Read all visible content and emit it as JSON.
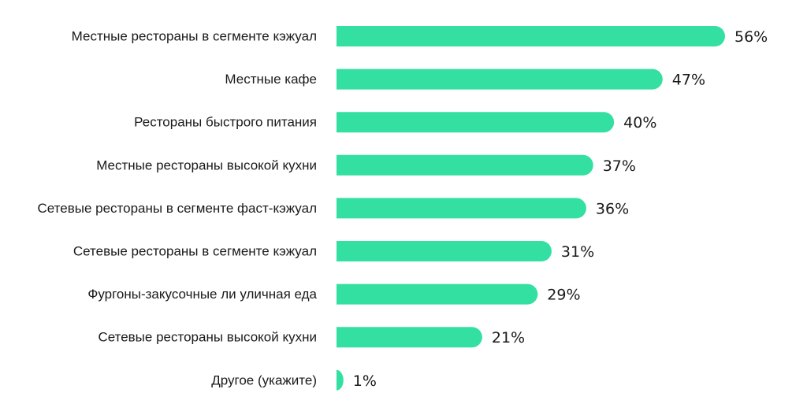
{
  "chart_data": {
    "type": "bar",
    "orientation": "horizontal",
    "categories": [
      "Местные рестораны в сегменте кэжуал",
      "Местные кафе",
      "Рестораны быстрого питания",
      "Местные рестораны высокой кухни",
      "Сетевые рестораны в сегменте фаст-кэжуал",
      "Сетевые рестораны в сегменте кэжуал",
      "Фургоны-закусочные ли уличная еда",
      "Сетевые рестораны высокой кухни",
      "Другое (укажите)"
    ],
    "values": [
      56,
      47,
      40,
      37,
      36,
      31,
      29,
      21,
      1
    ],
    "value_labels": [
      "56%",
      "47%",
      "40%",
      "37%",
      "36%",
      "31%",
      "29%",
      "21%",
      "1%"
    ],
    "unit": "%",
    "title": "",
    "xlabel": "",
    "ylabel": "",
    "xlim": [
      0,
      56
    ],
    "grid": false,
    "legend": "none",
    "bar_color": "#33e0a1",
    "text_color": "#1a1a1a"
  }
}
